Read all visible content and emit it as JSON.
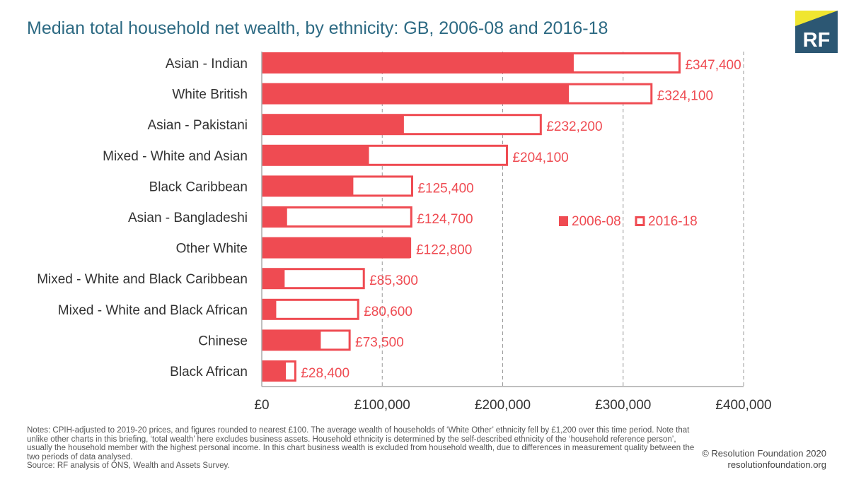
{
  "header": {
    "title": "Median total household net wealth, by ethnicity: GB, 2006-08 and 2016-18"
  },
  "logo": {
    "text": "RF",
    "colors": {
      "navy": "#2c5773",
      "yellow": "#f0e630"
    }
  },
  "chart_data": {
    "type": "bar",
    "orientation": "horizontal",
    "categories": [
      "Asian - Indian",
      "White British",
      "Asian - Pakistani",
      "Mixed - White and Asian",
      "Black Caribbean",
      "Asian - Bangladeshi",
      "Other White",
      "Mixed - White and Black Caribbean",
      "Mixed - White and Black African",
      "Chinese",
      "Black African"
    ],
    "series": [
      {
        "name": "2006-08",
        "style": "filled",
        "values": [
          259000,
          255000,
          118000,
          89000,
          76000,
          21000,
          124000,
          19000,
          12000,
          49000,
          20000
        ]
      },
      {
        "name": "2016-18",
        "style": "outline",
        "values": [
          347400,
          324100,
          232200,
          204100,
          125400,
          124700,
          122800,
          85300,
          80600,
          73500,
          28400
        ]
      }
    ],
    "data_labels": [
      "£347,400",
      "£324,100",
      "£232,200",
      "£204,100",
      "£125,400",
      "£124,700",
      "£122,800",
      "£85,300",
      "£80,600",
      "£73,500",
      "£28,400"
    ],
    "xlim": [
      0,
      400000
    ],
    "xticks": [
      0,
      100000,
      200000,
      300000,
      400000
    ],
    "xtick_labels": [
      "£0",
      "£100,000",
      "£200,000",
      "£300,000",
      "£400,000"
    ],
    "grid": "vertical dashed",
    "legend": {
      "placement": "right",
      "entries": [
        "2006-08",
        "2016-18"
      ]
    },
    "colors": {
      "bar": "#ef4b52",
      "label": "#ef4b52",
      "axis": "#aaaaaa",
      "grid": "#999999"
    }
  },
  "footer": {
    "notes": "Notes: CPIH-adjusted to 2019-20 prices, and figures rounded to nearest £100. The average wealth of households of ‘White Other’ ethnicity fell by £1,200 over this time period. Note that unlike other charts in this briefing, ‘total wealth’ here excludes business assets. Household ethnicity is determined by the self-described ethnicity of the ‘household reference person’, usually the household member with the highest personal income. In this chart business wealth is excluded from household wealth, due to differences in measurement quality between the two periods of data analysed.",
    "source": "Source: RF analysis of ONS, Wealth and Assets Survey.",
    "copyright": "© Resolution Foundation 2020",
    "website": "resolutionfoundation.org"
  }
}
